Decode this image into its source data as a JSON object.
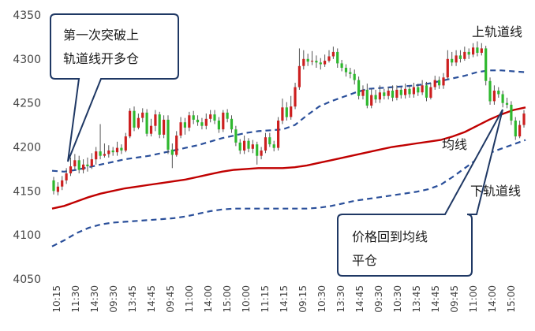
{
  "chart_data": {
    "type": "candlestick",
    "title": "",
    "xlabel": "",
    "ylabel": "",
    "ylim": [
      4050,
      4350
    ],
    "yticks": [
      4050,
      4100,
      4150,
      4200,
      4250,
      4300,
      4350
    ],
    "xtick_labels": [
      "10:15",
      "11:30",
      "14:30",
      "09:30",
      "13:45",
      "14:45",
      "09:45",
      "11:00",
      "14:00",
      "15:00",
      "10:00",
      "11:15",
      "14:15",
      "09:15",
      "10:30",
      "13:30",
      "14:45",
      "09:30",
      "10:30",
      "13:45",
      "14:45",
      "09:45",
      "11:00",
      "14:00",
      "15:00"
    ],
    "up_color": "#cc1f1f",
    "down_color": "#2eb82e",
    "series_colors": {
      "middle": "#c00000",
      "bands": "#2a4f9a"
    },
    "candles": [
      [
        4162,
        4150,
        4166,
        4146
      ],
      [
        4149,
        4155,
        4160,
        4145
      ],
      [
        4155,
        4162,
        4167,
        4151
      ],
      [
        4162,
        4170,
        4176,
        4158
      ],
      [
        4170,
        4178,
        4188,
        4167
      ],
      [
        4178,
        4185,
        4192,
        4174
      ],
      [
        4185,
        4174,
        4190,
        4170
      ],
      [
        4174,
        4180,
        4186,
        4170
      ],
      [
        4180,
        4178,
        4188,
        4172
      ],
      [
        4178,
        4186,
        4193,
        4175
      ],
      [
        4186,
        4195,
        4200,
        4180
      ],
      [
        4195,
        4190,
        4226,
        4186
      ],
      [
        4190,
        4192,
        4204,
        4188
      ],
      [
        4192,
        4196,
        4202,
        4188
      ],
      [
        4196,
        4194,
        4200,
        4190
      ],
      [
        4194,
        4199,
        4206,
        4190
      ],
      [
        4199,
        4196,
        4203,
        4192
      ],
      [
        4196,
        4212,
        4216,
        4194
      ],
      [
        4212,
        4241,
        4244,
        4210
      ],
      [
        4241,
        4222,
        4246,
        4218
      ],
      [
        4222,
        4233,
        4238,
        4220
      ],
      [
        4233,
        4239,
        4244,
        4228
      ],
      [
        4239,
        4215,
        4243,
        4212
      ],
      [
        4215,
        4224,
        4232,
        4212
      ],
      [
        4224,
        4237,
        4242,
        4218
      ],
      [
        4237,
        4214,
        4240,
        4210
      ],
      [
        4214,
        4231,
        4236,
        4210
      ],
      [
        4231,
        4197,
        4236,
        4192
      ],
      [
        4197,
        4191,
        4204,
        4176
      ],
      [
        4191,
        4213,
        4218,
        4189
      ],
      [
        4213,
        4228,
        4234,
        4210
      ],
      [
        4228,
        4222,
        4233,
        4214
      ],
      [
        4222,
        4236,
        4240,
        4218
      ],
      [
        4236,
        4231,
        4241,
        4226
      ],
      [
        4231,
        4228,
        4236,
        4224
      ],
      [
        4228,
        4224,
        4233,
        4220
      ],
      [
        4224,
        4232,
        4238,
        4220
      ],
      [
        4232,
        4237,
        4242,
        4228
      ],
      [
        4237,
        4230,
        4242,
        4226
      ],
      [
        4230,
        4220,
        4234,
        4216
      ],
      [
        4220,
        4239,
        4242,
        4217
      ],
      [
        4239,
        4232,
        4243,
        4228
      ],
      [
        4232,
        4220,
        4236,
        4216
      ],
      [
        4220,
        4205,
        4224,
        4201
      ],
      [
        4205,
        4196,
        4209,
        4192
      ],
      [
        4196,
        4207,
        4213,
        4192
      ],
      [
        4207,
        4198,
        4210,
        4194
      ],
      [
        4198,
        4203,
        4208,
        4193
      ],
      [
        4203,
        4190,
        4206,
        4180
      ],
      [
        4190,
        4196,
        4200,
        4186
      ],
      [
        4196,
        4211,
        4216,
        4193
      ],
      [
        4211,
        4203,
        4216,
        4200
      ],
      [
        4203,
        4199,
        4207,
        4195
      ],
      [
        4199,
        4230,
        4234,
        4196
      ],
      [
        4230,
        4245,
        4255,
        4226
      ],
      [
        4245,
        4234,
        4251,
        4230
      ],
      [
        4234,
        4246,
        4258,
        4231
      ],
      [
        4246,
        4268,
        4273,
        4243
      ],
      [
        4268,
        4292,
        4312,
        4265
      ],
      [
        4292,
        4300,
        4310,
        4288
      ],
      [
        4300,
        4297,
        4306,
        4292
      ],
      [
        4297,
        4298,
        4309,
        4293
      ],
      [
        4298,
        4296,
        4304,
        4290
      ],
      [
        4296,
        4294,
        4301,
        4288
      ],
      [
        4294,
        4298,
        4305,
        4291
      ],
      [
        4298,
        4303,
        4310,
        4296
      ],
      [
        4303,
        4308,
        4314,
        4300
      ],
      [
        4308,
        4295,
        4312,
        4290
      ],
      [
        4295,
        4290,
        4299,
        4286
      ],
      [
        4290,
        4285,
        4294,
        4280
      ],
      [
        4285,
        4283,
        4290,
        4278
      ],
      [
        4283,
        4276,
        4288,
        4271
      ],
      [
        4276,
        4258,
        4280,
        4254
      ],
      [
        4258,
        4265,
        4270,
        4254
      ],
      [
        4265,
        4247,
        4272,
        4244
      ],
      [
        4247,
        4259,
        4266,
        4244
      ],
      [
        4259,
        4254,
        4265,
        4250
      ],
      [
        4254,
        4262,
        4270,
        4250
      ],
      [
        4262,
        4258,
        4266,
        4254
      ],
      [
        4258,
        4264,
        4268,
        4254
      ],
      [
        4264,
        4256,
        4270,
        4252
      ],
      [
        4256,
        4265,
        4270,
        4253
      ],
      [
        4265,
        4259,
        4268,
        4255
      ],
      [
        4259,
        4266,
        4272,
        4255
      ],
      [
        4266,
        4260,
        4270,
        4256
      ],
      [
        4260,
        4268,
        4273,
        4256
      ],
      [
        4268,
        4262,
        4272,
        4258
      ],
      [
        4262,
        4270,
        4276,
        4259
      ],
      [
        4270,
        4256,
        4274,
        4252
      ],
      [
        4256,
        4268,
        4273,
        4254
      ],
      [
        4268,
        4276,
        4281,
        4265
      ],
      [
        4276,
        4270,
        4280,
        4266
      ],
      [
        4270,
        4279,
        4284,
        4266
      ],
      [
        4279,
        4300,
        4310,
        4276
      ],
      [
        4300,
        4296,
        4308,
        4292
      ],
      [
        4296,
        4304,
        4310,
        4292
      ],
      [
        4304,
        4300,
        4310,
        4296
      ],
      [
        4300,
        4308,
        4314,
        4298
      ],
      [
        4308,
        4305,
        4312,
        4300
      ],
      [
        4305,
        4313,
        4318,
        4302
      ],
      [
        4313,
        4307,
        4320,
        4303
      ],
      [
        4307,
        4312,
        4318,
        4304
      ],
      [
        4312,
        4275,
        4315,
        4270
      ],
      [
        4275,
        4252,
        4279,
        4248
      ],
      [
        4252,
        4264,
        4270,
        4248
      ],
      [
        4264,
        4260,
        4268,
        4256
      ],
      [
        4260,
        4250,
        4264,
        4245
      ],
      [
        4250,
        4248,
        4256,
        4244
      ],
      [
        4248,
        4230,
        4252,
        4225
      ],
      [
        4230,
        4212,
        4234,
        4208
      ],
      [
        4212,
        4225,
        4230,
        4210
      ],
      [
        4225,
        4238,
        4242,
        4222
      ]
    ],
    "upper_band": [
      4173,
      4172,
      4174,
      4177,
      4180,
      4183,
      4186,
      4188,
      4190,
      4193,
      4196,
      4199,
      4202,
      4206,
      4210,
      4213,
      4216,
      4218,
      4219,
      4220,
      4225,
      4236,
      4246,
      4252,
      4257,
      4262,
      4266,
      4267,
      4268,
      4269,
      4270,
      4272,
      4275,
      4278,
      4281,
      4285,
      4287,
      4287,
      4286,
      4285
    ],
    "middle_band": [
      4130,
      4133,
      4138,
      4143,
      4147,
      4150,
      4153,
      4155,
      4157,
      4159,
      4161,
      4163,
      4166,
      4169,
      4172,
      4174,
      4175,
      4176,
      4176,
      4176,
      4177,
      4179,
      4182,
      4185,
      4188,
      4191,
      4194,
      4197,
      4200,
      4202,
      4204,
      4206,
      4208,
      4212,
      4217,
      4224,
      4231,
      4237,
      4242,
      4245
    ],
    "lower_band": [
      4087,
      4094,
      4102,
      4108,
      4112,
      4114,
      4115,
      4116,
      4117,
      4118,
      4119,
      4121,
      4124,
      4127,
      4129,
      4130,
      4130,
      4130,
      4130,
      4130,
      4130,
      4130,
      4131,
      4133,
      4136,
      4139,
      4141,
      4143,
      4145,
      4147,
      4149,
      4152,
      4157,
      4166,
      4176,
      4186,
      4193,
      4198,
      4203,
      4208
    ],
    "annotations": [
      {
        "text": [
          "第一次突破上",
          "轨道线开多仓"
        ]
      },
      {
        "text": [
          "价格回到均线",
          "平仓"
        ]
      }
    ],
    "labels": {
      "upper": "上轨道线",
      "middle": "均线",
      "lower": "下轨道线"
    }
  }
}
